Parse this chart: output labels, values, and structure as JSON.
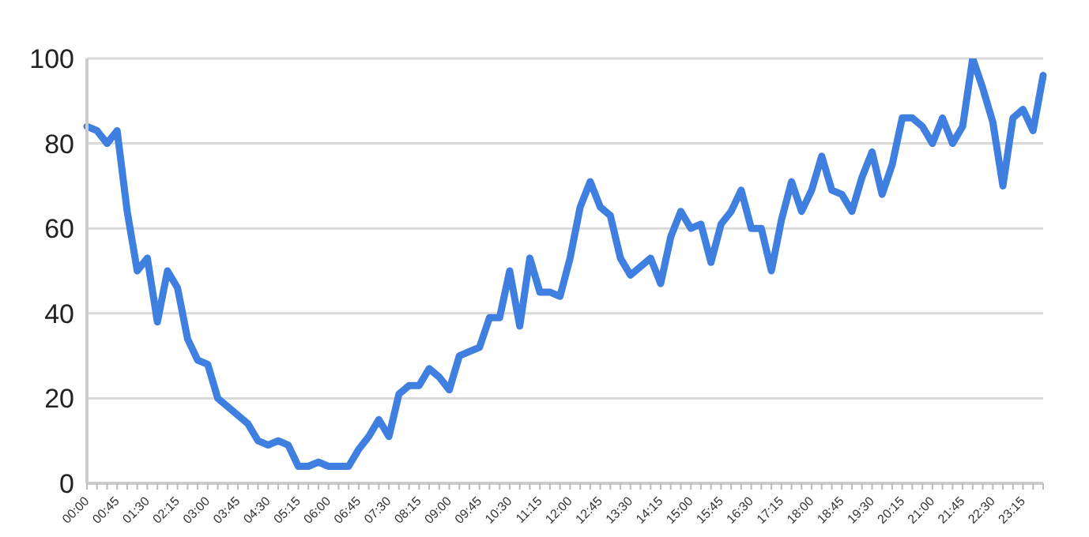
{
  "chart_data": {
    "type": "line",
    "categories": [
      "00:00",
      null,
      null,
      "00:45",
      null,
      null,
      "01:30",
      null,
      null,
      "02:15",
      null,
      null,
      "03:00",
      null,
      null,
      "03:45",
      null,
      null,
      "04:30",
      null,
      null,
      "05:15",
      null,
      null,
      "06:00",
      null,
      null,
      "06:45",
      null,
      null,
      "07:30",
      null,
      null,
      "08:15",
      null,
      null,
      "09:00",
      null,
      null,
      "09:45",
      null,
      null,
      "10:30",
      null,
      null,
      "11:15",
      null,
      null,
      "12:00",
      null,
      null,
      "12:45",
      null,
      null,
      "13:30",
      null,
      null,
      "14:15",
      null,
      null,
      "15:00",
      null,
      null,
      "15:45",
      null,
      null,
      "16:30",
      null,
      null,
      "17:15",
      null,
      null,
      "18:00",
      null,
      null,
      "18:45",
      null,
      null,
      "19:30",
      null,
      null,
      "20:15",
      null,
      null,
      "21:00",
      null,
      null,
      "21:45",
      null,
      null,
      "22:30",
      null,
      null,
      "23:15",
      null,
      null
    ],
    "series": [
      {
        "color": "#3f7fe0",
        "values": [
          84,
          83,
          80,
          83,
          64,
          50,
          53,
          38,
          50,
          46,
          34,
          29,
          28,
          20,
          18,
          16,
          14,
          10,
          9,
          10,
          9,
          4,
          4,
          5,
          4,
          4,
          4,
          8,
          11,
          15,
          11,
          21,
          23,
          23,
          27,
          25,
          22,
          30,
          31,
          32,
          39,
          39,
          50,
          37,
          53,
          45,
          45,
          44,
          53,
          65,
          71,
          65,
          63,
          53,
          49,
          51,
          53,
          47,
          58,
          64,
          60,
          61,
          52,
          61,
          64,
          69,
          60,
          60,
          50,
          62,
          71,
          64,
          69,
          77,
          69,
          68,
          64,
          72,
          78,
          68,
          75,
          86,
          86,
          84,
          80,
          86,
          80,
          84,
          100,
          93,
          85,
          70,
          86,
          88,
          83,
          96
        ]
      }
    ],
    "ylim": [
      0,
      100
    ],
    "yticks": [
      0,
      20,
      40,
      60,
      80,
      100
    ],
    "grid": "y",
    "legend": false,
    "marker": "none",
    "line_style": "solid"
  }
}
